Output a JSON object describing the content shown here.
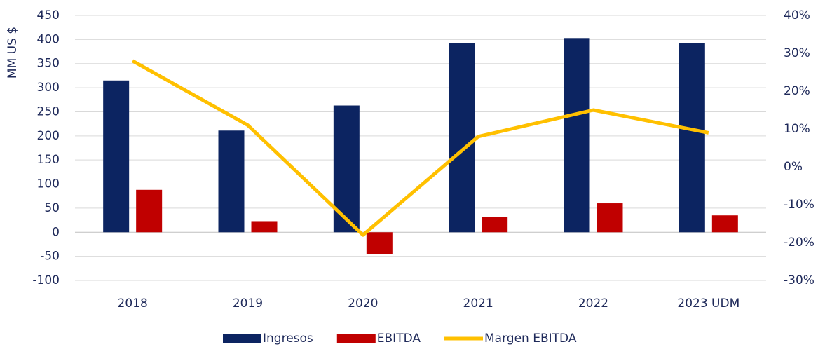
{
  "chart_data": {
    "type": "bar",
    "categories": [
      "2018",
      "2019",
      "2020",
      "2021",
      "2022",
      "2023 UDM"
    ],
    "y_label": "MM US $",
    "series": [
      {
        "name": "Ingresos",
        "type": "bar",
        "color": "#0c2461",
        "values": [
          315,
          211,
          263,
          392,
          403,
          393
        ]
      },
      {
        "name": "EBITDA",
        "type": "bar",
        "color": "#c00000",
        "values": [
          88,
          23,
          -45,
          32,
          60,
          35
        ]
      },
      {
        "name": "Margen EBITDA",
        "type": "line",
        "axis": "y2",
        "color": "#ffc000",
        "values": [
          28,
          11,
          -18,
          8,
          15,
          9
        ]
      }
    ],
    "ylim": [
      -100,
      450
    ],
    "yticks": [
      -100,
      -50,
      0,
      50,
      100,
      150,
      200,
      250,
      300,
      350,
      400,
      450
    ],
    "y2lim": [
      -30,
      40
    ],
    "y2ticks": [
      {
        "value": -30,
        "label": "-30%"
      },
      {
        "value": -20,
        "label": "-20%"
      },
      {
        "value": -10,
        "label": "-10%"
      },
      {
        "value": 0,
        "label": "0%"
      },
      {
        "value": 10,
        "label": "10%"
      },
      {
        "value": 20,
        "label": "20%"
      },
      {
        "value": 30,
        "label": "30%"
      },
      {
        "value": 40,
        "label": "40%"
      }
    ],
    "grid": true,
    "legend": "bottom"
  }
}
